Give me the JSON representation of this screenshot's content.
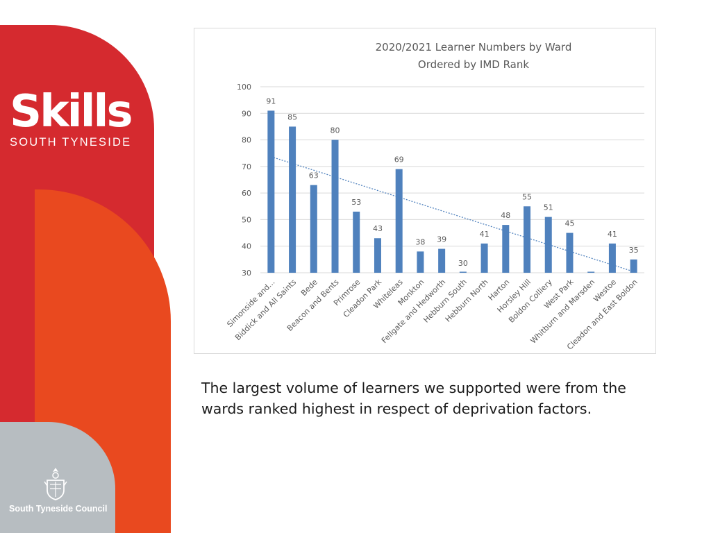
{
  "branding": {
    "logo_word": "Skills",
    "logo_sub": "SOUTH TYNESIDE",
    "council": "South Tyneside Council"
  },
  "caption": "The largest volume of learners we supported were from the wards ranked highest in respect of deprivation factors.",
  "colors": {
    "bar": "#4f81bd",
    "trendline": "#4f81bd",
    "brand_red": "#d52a2f",
    "brand_orange": "#e9491f",
    "brand_grey": "#b7bdc1"
  },
  "chart_data": {
    "type": "bar",
    "title": "2020/2021 Learner Numbers by Ward",
    "subtitle": "Ordered by IMD Rank",
    "categories": [
      "Simonside and...",
      "Biddick and All Saints",
      "Bede",
      "Beacon and Bents",
      "Primrose",
      "Cleadon Park",
      "Whiteleas",
      "Monkton",
      "Fellgate and Hedworth",
      "Hebburn South",
      "Hebburn North",
      "Harton",
      "Horsley Hill",
      "Boldon Colliery",
      "West Park",
      "Whitburn and Marsden",
      "Westoe",
      "Cleadon and East Boldon"
    ],
    "values": [
      91,
      85,
      63,
      80,
      53,
      43,
      69,
      38,
      39,
      30,
      41,
      48,
      55,
      51,
      45,
      30,
      41,
      35
    ],
    "data_labels": [
      "91",
      "85",
      "63",
      "80",
      "53",
      "43",
      "69",
      "38",
      "39",
      "30",
      "41",
      "48",
      "55",
      "51",
      "45",
      "",
      "41",
      "35"
    ],
    "ylim": [
      30,
      100
    ],
    "yticks": [
      "30",
      "40",
      "50",
      "60",
      "70",
      "80",
      "90",
      "100"
    ],
    "trendline": "linear",
    "grid": true,
    "legend": "none"
  }
}
